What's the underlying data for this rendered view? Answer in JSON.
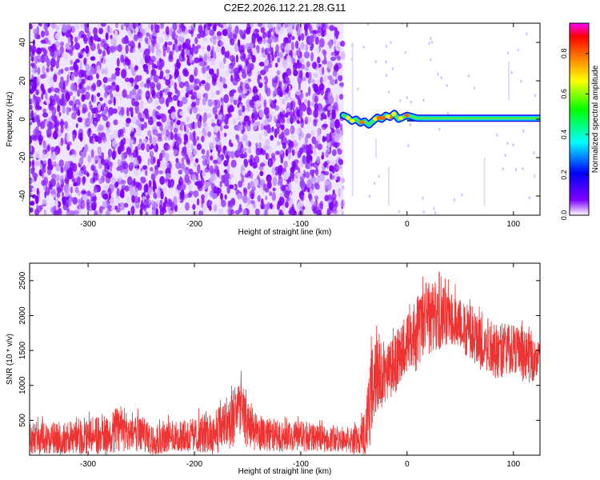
{
  "chart_data": [
    {
      "type": "heatmap",
      "title": "C2E2.2026.112.21.28.G11",
      "xlabel": "Height of straight line (km)",
      "ylabel": "Frequency (Hz)",
      "xlim": [
        -355,
        125
      ],
      "ylim": [
        -50,
        50
      ],
      "xticks": [
        "-300",
        "-200",
        "-100",
        "0",
        "100"
      ],
      "xtick_values": [
        -300,
        -200,
        -100,
        0,
        100
      ],
      "yticks": [
        "40",
        "20",
        "0",
        "-20",
        "-40"
      ],
      "ytick_values": [
        40,
        20,
        0,
        -20,
        -40
      ],
      "colorbar": {
        "label": "Normalized spectral amplitude",
        "ticks": [
          "0.0",
          "0.2",
          "0.4",
          "0.6",
          "0.8"
        ],
        "tick_values": [
          0,
          0.2,
          0.4,
          0.6,
          0.8
        ],
        "range": [
          0,
          0.95
        ],
        "colormap": [
          "#ffffff",
          "#7f00ff",
          "#0000ff",
          "#00ffff",
          "#00ff00",
          "#ffff00",
          "#ff7f00",
          "#ff0000",
          "#ff00ff"
        ]
      },
      "regions": [
        {
          "x": [
            -355,
            -60
          ],
          "freq": [
            -50,
            50
          ],
          "pattern": "broadband noise",
          "amplitude": [
            0.0,
            0.15
          ],
          "color": "#7f00ff"
        },
        {
          "x": [
            -60,
            0
          ],
          "freq": [
            -3,
            4
          ],
          "pattern": "wavy signal line",
          "amplitude": [
            0.2,
            0.85
          ]
        },
        {
          "x": [
            0,
            125
          ],
          "freq": [
            -1,
            1
          ],
          "pattern": "steady carrier line",
          "amplitude": [
            0.7,
            0.95
          ]
        }
      ],
      "signal_trace": {
        "x": [
          -60,
          -56,
          -52,
          -48,
          -44,
          -40,
          -36,
          -32,
          -28,
          -24,
          -20,
          -16,
          -12,
          -8,
          -4,
          0,
          10,
          50,
          125
        ],
        "freq": [
          2,
          1,
          -1,
          0,
          -2,
          -1,
          -3,
          -1,
          1,
          0,
          2,
          1,
          3,
          0,
          1,
          2,
          0.5,
          0.5,
          0.5
        ]
      }
    },
    {
      "type": "line",
      "xlabel": "Height of straight line (km)",
      "ylabel": "SNR (10 * v/v)",
      "xlim": [
        -355,
        125
      ],
      "ylim": [
        0,
        2750
      ],
      "xticks": [
        "-300",
        "-200",
        "-100",
        "0",
        "100"
      ],
      "xtick_values": [
        -300,
        -200,
        -100,
        0,
        100
      ],
      "yticks": [
        "500",
        "1000",
        "1500",
        "2000",
        "2500"
      ],
      "ytick_values": [
        500,
        1000,
        1500,
        2000,
        2500
      ],
      "series_color": "#ee3333",
      "envelope": {
        "x": [
          -355,
          -330,
          -300,
          -280,
          -270,
          -260,
          -240,
          -200,
          -180,
          -165,
          -158,
          -150,
          -140,
          -120,
          -100,
          -80,
          -60,
          -45,
          -40,
          -35,
          -30,
          -20,
          -10,
          0,
          10,
          20,
          30,
          40,
          50,
          60,
          70,
          80,
          90,
          100,
          110,
          125
        ],
        "low": [
          0,
          0,
          0,
          0,
          50,
          50,
          0,
          50,
          0,
          100,
          150,
          100,
          50,
          50,
          50,
          50,
          50,
          0,
          0,
          100,
          600,
          700,
          900,
          1200,
          1200,
          1400,
          1500,
          1600,
          1500,
          1300,
          1200,
          1100,
          1100,
          1200,
          1000,
          1100
        ],
        "high": [
          600,
          550,
          650,
          700,
          850,
          750,
          550,
          650,
          800,
          1100,
          1300,
          950,
          650,
          550,
          600,
          500,
          450,
          500,
          800,
          1600,
          2000,
          1700,
          1950,
          2200,
          2500,
          2750,
          2700,
          2600,
          2450,
          2300,
          2200,
          2100,
          2050,
          2000,
          1950,
          1700
        ],
        "mean": [
          250,
          240,
          260,
          280,
          450,
          350,
          250,
          260,
          320,
          500,
          750,
          450,
          300,
          270,
          270,
          240,
          230,
          230,
          300,
          700,
          1100,
          1150,
          1350,
          1650,
          1800,
          2050,
          2000,
          1950,
          1800,
          1700,
          1650,
          1600,
          1550,
          1600,
          1450,
          1400
        ]
      }
    }
  ]
}
